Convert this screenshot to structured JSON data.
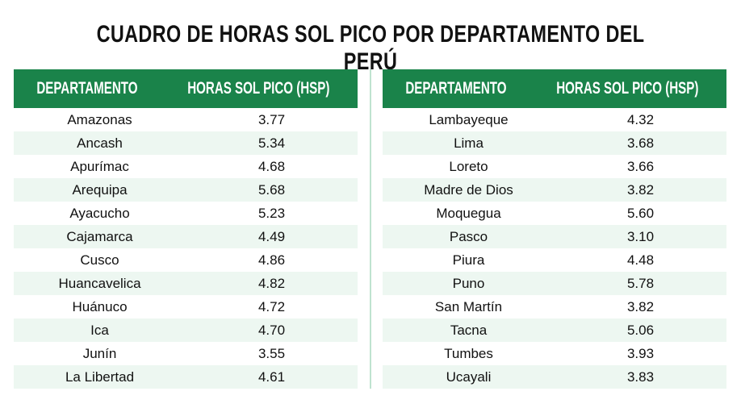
{
  "title": "CUADRO DE HORAS SOL PICO POR DEPARTAMENTO DEL PERÚ",
  "colors": {
    "header": "#1a834a",
    "stripe": "#edf7f1",
    "divider": "#bfe3d0"
  },
  "tables": [
    {
      "headers": [
        "DEPARTAMENTO",
        "HORAS SOL PICO (HSP)"
      ],
      "rows": [
        [
          "Amazonas",
          "3.77"
        ],
        [
          "Ancash",
          "5.34"
        ],
        [
          "Apurímac",
          "4.68"
        ],
        [
          "Arequipa",
          "5.68"
        ],
        [
          "Ayacucho",
          "5.23"
        ],
        [
          "Cajamarca",
          "4.49"
        ],
        [
          "Cusco",
          "4.86"
        ],
        [
          "Huancavelica",
          "4.82"
        ],
        [
          "Huánuco",
          "4.72"
        ],
        [
          "Ica",
          "4.70"
        ],
        [
          "Junín",
          "3.55"
        ],
        [
          "La Libertad",
          "4.61"
        ]
      ]
    },
    {
      "headers": [
        "DEPARTAMENTO",
        "HORAS SOL PICO (HSP)"
      ],
      "rows": [
        [
          "Lambayeque",
          "4.32"
        ],
        [
          "Lima",
          "3.68"
        ],
        [
          "Loreto",
          "3.66"
        ],
        [
          "Madre de Dios",
          "3.82"
        ],
        [
          "Moquegua",
          "5.60"
        ],
        [
          "Pasco",
          "3.10"
        ],
        [
          "Piura",
          "4.48"
        ],
        [
          "Puno",
          "5.78"
        ],
        [
          "San Martín",
          "3.82"
        ],
        [
          "Tacna",
          "5.06"
        ],
        [
          "Tumbes",
          "3.93"
        ],
        [
          "Ucayali",
          "3.83"
        ]
      ]
    }
  ]
}
